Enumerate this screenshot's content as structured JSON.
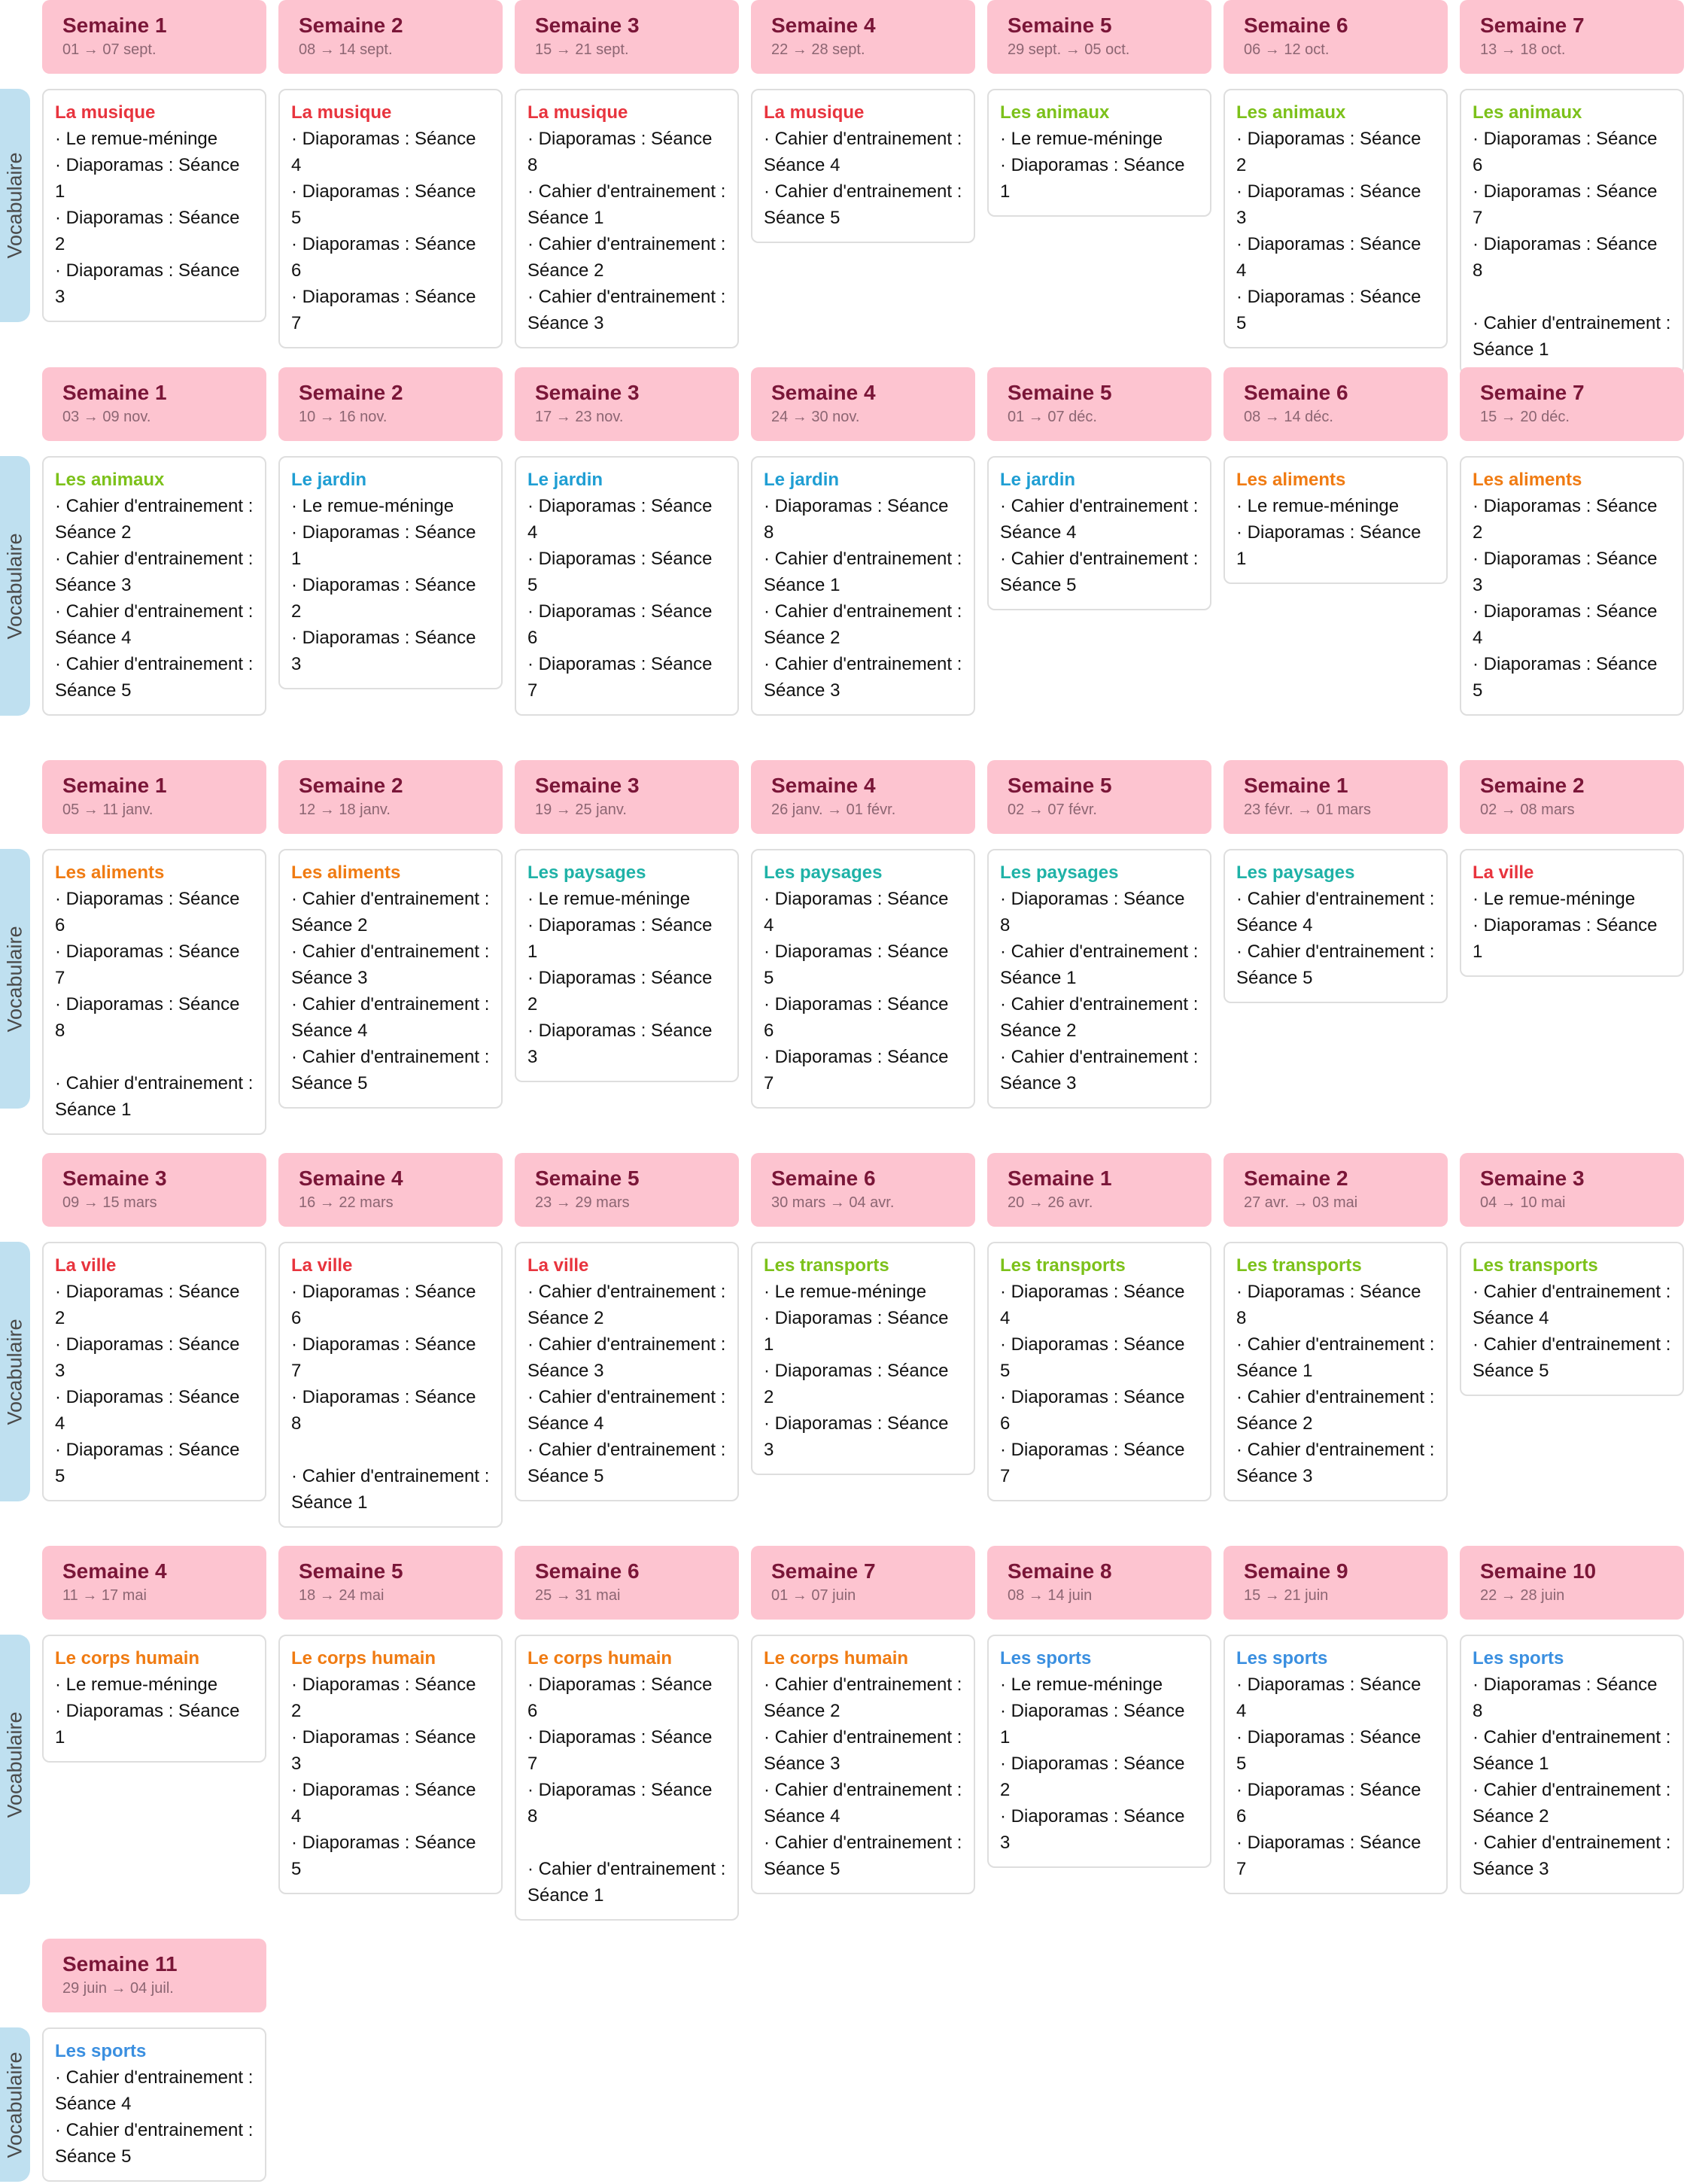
{
  "vocab_label": "Vocabulaire",
  "theme_colors": {
    "La musique": "#e8343e",
    "Les animaux": "#7cc11a",
    "Le jardin": "#1f9ed3",
    "Les aliments": "#f07b12",
    "Les paysages": "#1fb2a7",
    "La ville": "#e8343e",
    "Les transports": "#7cc11a",
    "Le corps humain": "#f07b12",
    "Les sports": "#3a8fe0"
  },
  "periods": [
    {
      "weeks": [
        {
          "title": "Semaine 1",
          "dates": "01 → 07 sept.",
          "theme": "La musique",
          "items": [
            "· Le remue-méninge",
            "· Diaporamas : Séance 1",
            "· Diaporamas : Séance 2",
            "· Diaporamas : Séance 3"
          ]
        },
        {
          "title": "Semaine 2",
          "dates": "08 → 14 sept.",
          "theme": "La musique",
          "items": [
            "· Diaporamas : Séance 4",
            "· Diaporamas : Séance 5",
            "· Diaporamas : Séance 6",
            "· Diaporamas : Séance 7"
          ]
        },
        {
          "title": "Semaine 3",
          "dates": "15 → 21 sept.",
          "theme": "La musique",
          "items": [
            "· Diaporamas : Séance 8",
            "· Cahier d'entrainement :",
            "Séance 1",
            "· Cahier d'entrainement :",
            "Séance 2",
            "· Cahier d'entrainement :",
            "Séance 3"
          ]
        },
        {
          "title": "Semaine 4",
          "dates": "22 → 28 sept.",
          "theme": "La musique",
          "items": [
            "· Cahier d'entrainement :",
            "Séance 4",
            "· Cahier d'entrainement :",
            "Séance 5"
          ]
        },
        {
          "title": "Semaine 5",
          "dates": "29 sept. → 05 oct.",
          "theme": "Les animaux",
          "items": [
            "· Le remue-méninge",
            "· Diaporamas : Séance 1"
          ]
        },
        {
          "title": "Semaine 6",
          "dates": "06 → 12 oct.",
          "theme": "Les animaux",
          "items": [
            "· Diaporamas : Séance 2",
            "· Diaporamas : Séance 3",
            "· Diaporamas : Séance 4",
            "· Diaporamas : Séance 5"
          ]
        },
        {
          "title": "Semaine 7",
          "dates": "13 → 18 oct.",
          "theme": "Les animaux",
          "items": [
            "· Diaporamas : Séance 6",
            "· Diaporamas : Séance 7",
            "· Diaporamas : Séance 8",
            "",
            "· Cahier d'entrainement :",
            "Séance 1"
          ]
        }
      ]
    },
    {
      "weeks": [
        {
          "title": "Semaine 1",
          "dates": "03 → 09 nov.",
          "theme": "Les animaux",
          "items": [
            "· Cahier d'entrainement :",
            "Séance 2",
            "· Cahier d'entrainement :",
            "Séance 3",
            "· Cahier d'entrainement :",
            "Séance 4",
            "· Cahier d'entrainement :",
            "Séance 5"
          ]
        },
        {
          "title": "Semaine 2",
          "dates": "10 → 16 nov.",
          "theme": "Le jardin",
          "items": [
            "· Le remue-méninge",
            "· Diaporamas : Séance 1",
            "· Diaporamas : Séance 2",
            "· Diaporamas : Séance 3"
          ]
        },
        {
          "title": "Semaine 3",
          "dates": "17 → 23 nov.",
          "theme": "Le jardin",
          "items": [
            "· Diaporamas : Séance 4",
            "· Diaporamas : Séance 5",
            "· Diaporamas : Séance 6",
            "· Diaporamas : Séance 7"
          ]
        },
        {
          "title": "Semaine 4",
          "dates": "24 → 30 nov.",
          "theme": "Le jardin",
          "items": [
            "· Diaporamas : Séance 8",
            "· Cahier d'entrainement :",
            "Séance 1",
            "· Cahier d'entrainement :",
            "Séance 2",
            "· Cahier d'entrainement :",
            "Séance 3"
          ]
        },
        {
          "title": "Semaine 5",
          "dates": "01 → 07 déc.",
          "theme": "Le jardin",
          "items": [
            "· Cahier d'entrainement :",
            "Séance 4",
            "· Cahier d'entrainement :",
            "Séance 5"
          ]
        },
        {
          "title": "Semaine 6",
          "dates": "08 → 14 déc.",
          "theme": "Les aliments",
          "items": [
            "· Le remue-méninge",
            "· Diaporamas : Séance 1"
          ]
        },
        {
          "title": "Semaine 7",
          "dates": "15 → 20 déc.",
          "theme": "Les aliments",
          "items": [
            "· Diaporamas : Séance 2",
            "· Diaporamas : Séance 3",
            "· Diaporamas : Séance 4",
            "· Diaporamas : Séance 5"
          ]
        }
      ]
    },
    {
      "weeks": [
        {
          "title": "Semaine 1",
          "dates": "05 → 11 janv.",
          "theme": "Les aliments",
          "items": [
            "· Diaporamas : Séance 6",
            "· Diaporamas : Séance 7",
            "· Diaporamas : Séance 8",
            "",
            "· Cahier d'entrainement :",
            "Séance 1"
          ]
        },
        {
          "title": "Semaine 2",
          "dates": "12 → 18 janv.",
          "theme": "Les aliments",
          "items": [
            "· Cahier d'entrainement :",
            "Séance 2",
            "· Cahier d'entrainement :",
            "Séance 3",
            "· Cahier d'entrainement :",
            "Séance 4",
            "· Cahier d'entrainement :",
            "Séance 5"
          ]
        },
        {
          "title": "Semaine 3",
          "dates": "19 → 25 janv.",
          "theme": "Les paysages",
          "items": [
            "· Le remue-méninge",
            "· Diaporamas : Séance 1",
            "· Diaporamas : Séance 2",
            "· Diaporamas : Séance 3"
          ]
        },
        {
          "title": "Semaine 4",
          "dates": "26 janv. → 01 févr.",
          "theme": "Les paysages",
          "items": [
            "· Diaporamas : Séance 4",
            "· Diaporamas : Séance 5",
            "· Diaporamas : Séance 6",
            "· Diaporamas : Séance 7"
          ]
        },
        {
          "title": "Semaine 5",
          "dates": "02 → 07 févr.",
          "theme": "Les paysages",
          "items": [
            "· Diaporamas : Séance 8",
            "· Cahier d'entrainement :",
            "Séance 1",
            "· Cahier d'entrainement :",
            "Séance 2",
            "· Cahier d'entrainement :",
            "Séance 3"
          ]
        },
        {
          "title": "Semaine 1",
          "dates": "23 févr. → 01 mars",
          "theme": "Les paysages",
          "items": [
            "· Cahier d'entrainement :",
            "Séance 4",
            "· Cahier d'entrainement :",
            "Séance 5"
          ]
        },
        {
          "title": "Semaine 2",
          "dates": "02 → 08 mars",
          "theme": "La ville",
          "items": [
            "· Le remue-méninge",
            "· Diaporamas : Séance 1"
          ]
        }
      ]
    },
    {
      "weeks": [
        {
          "title": "Semaine 3",
          "dates": "09 → 15 mars",
          "theme": "La ville",
          "items": [
            "· Diaporamas : Séance 2",
            "· Diaporamas : Séance 3",
            "· Diaporamas : Séance 4",
            "· Diaporamas : Séance 5"
          ]
        },
        {
          "title": "Semaine 4",
          "dates": "16 → 22 mars",
          "theme": "La ville",
          "items": [
            "· Diaporamas : Séance 6",
            "· Diaporamas : Séance 7",
            "· Diaporamas : Séance 8",
            "",
            "· Cahier d'entrainement :",
            "Séance 1"
          ]
        },
        {
          "title": "Semaine 5",
          "dates": "23 → 29 mars",
          "theme": "La ville",
          "items": [
            "· Cahier d'entrainement :",
            "Séance 2",
            "· Cahier d'entrainement :",
            "Séance 3",
            "· Cahier d'entrainement :",
            "Séance 4",
            "· Cahier d'entrainement :",
            "Séance 5"
          ]
        },
        {
          "title": "Semaine 6",
          "dates": "30 mars → 04 avr.",
          "theme": "Les transports",
          "items": [
            "· Le remue-méninge",
            "· Diaporamas : Séance 1",
            "· Diaporamas : Séance 2",
            "· Diaporamas : Séance 3"
          ]
        },
        {
          "title": "Semaine 1",
          "dates": "20 → 26 avr.",
          "theme": "Les transports",
          "items": [
            "· Diaporamas : Séance 4",
            "· Diaporamas : Séance 5",
            "· Diaporamas : Séance 6",
            "· Diaporamas : Séance 7"
          ]
        },
        {
          "title": "Semaine 2",
          "dates": "27 avr. → 03 mai",
          "theme": "Les transports",
          "items": [
            "· Diaporamas : Séance 8",
            "· Cahier d'entrainement :",
            "Séance 1",
            "· Cahier d'entrainement :",
            "Séance 2",
            "· Cahier d'entrainement :",
            "Séance 3"
          ]
        },
        {
          "title": "Semaine 3",
          "dates": "04 → 10 mai",
          "theme": "Les transports",
          "items": [
            "· Cahier d'entrainement :",
            "Séance 4",
            "· Cahier d'entrainement :",
            "Séance 5"
          ]
        }
      ]
    },
    {
      "weeks": [
        {
          "title": "Semaine 4",
          "dates": "11 → 17 mai",
          "theme": "Le corps humain",
          "items": [
            "· Le remue-méninge",
            "· Diaporamas : Séance 1"
          ]
        },
        {
          "title": "Semaine 5",
          "dates": "18 → 24 mai",
          "theme": "Le corps humain",
          "items": [
            "· Diaporamas : Séance 2",
            "· Diaporamas : Séance 3",
            "· Diaporamas : Séance 4",
            "· Diaporamas : Séance 5"
          ]
        },
        {
          "title": "Semaine 6",
          "dates": "25 → 31 mai",
          "theme": "Le corps humain",
          "items": [
            "· Diaporamas : Séance 6",
            "· Diaporamas : Séance 7",
            "· Diaporamas : Séance 8",
            "",
            "· Cahier d'entrainement :",
            "Séance 1"
          ]
        },
        {
          "title": "Semaine 7",
          "dates": "01 → 07 juin",
          "theme": "Le corps humain",
          "items": [
            "· Cahier d'entrainement :",
            "Séance 2",
            "· Cahier d'entrainement :",
            "Séance 3",
            "· Cahier d'entrainement :",
            "Séance 4",
            "· Cahier d'entrainement :",
            "Séance 5"
          ]
        },
        {
          "title": "Semaine 8",
          "dates": "08 → 14 juin",
          "theme": "Les sports",
          "items": [
            "· Le remue-méninge",
            "· Diaporamas : Séance 1",
            "· Diaporamas : Séance 2",
            "· Diaporamas : Séance 3"
          ]
        },
        {
          "title": "Semaine 9",
          "dates": "15 → 21 juin",
          "theme": "Les sports",
          "items": [
            "· Diaporamas : Séance 4",
            "· Diaporamas : Séance 5",
            "· Diaporamas : Séance 6",
            "· Diaporamas : Séance 7"
          ]
        },
        {
          "title": "Semaine 10",
          "dates": "22 → 28 juin",
          "theme": "Les sports",
          "items": [
            "· Diaporamas : Séance 8",
            "· Cahier d'entrainement :",
            "Séance 1",
            "· Cahier d'entrainement :",
            "Séance 2",
            "· Cahier d'entrainement :",
            "Séance 3"
          ]
        }
      ]
    },
    {
      "weeks": [
        {
          "title": "Semaine 11",
          "dates": "29 juin → 04 juil.",
          "theme": "Les sports",
          "items": [
            "· Cahier d'entrainement :",
            "Séance 4",
            "· Cahier d'entrainement :",
            "Séance 5"
          ]
        }
      ]
    }
  ]
}
